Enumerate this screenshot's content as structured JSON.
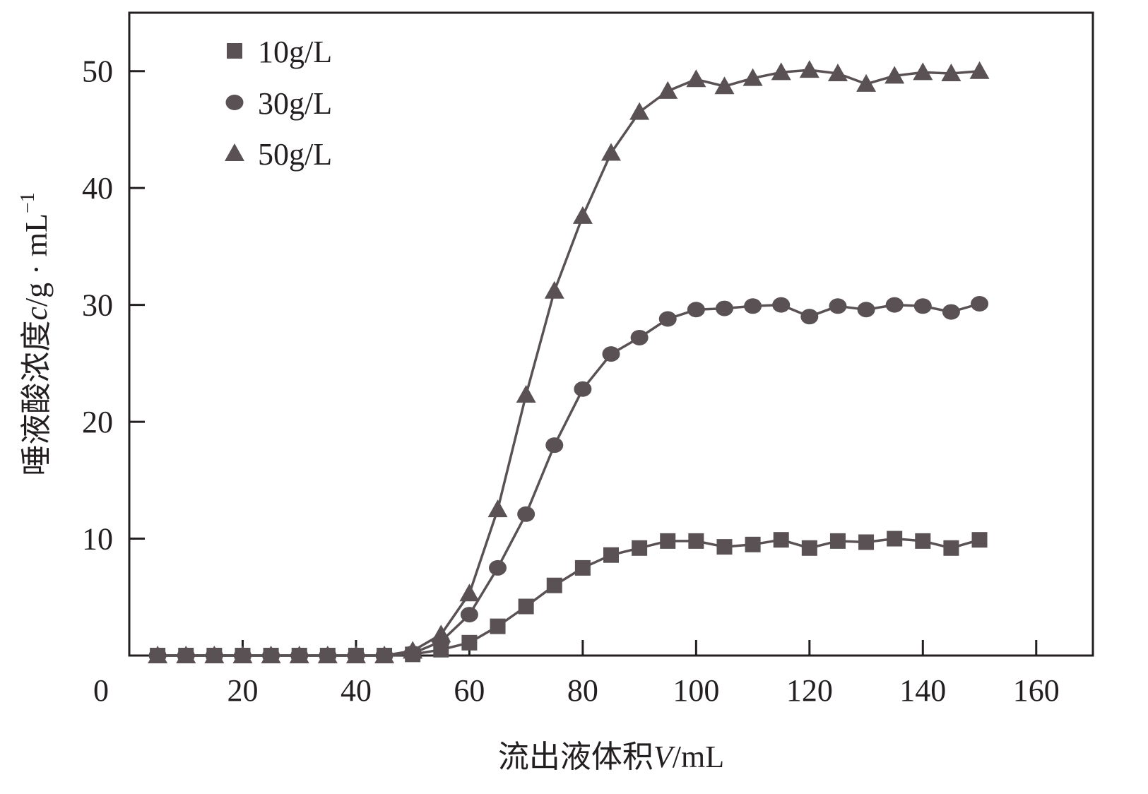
{
  "chart_data": {
    "type": "line",
    "xlabel_parts": [
      {
        "text": "流出液体积",
        "italic": false
      },
      {
        "text": "V",
        "italic": true
      },
      {
        "text": "/mL",
        "italic": false
      }
    ],
    "ylabel_parts": [
      {
        "text": "唾液酸浓度",
        "italic": false
      },
      {
        "text": "c",
        "italic": true
      },
      {
        "text": "/g · mL",
        "italic": false
      }
    ],
    "ylabel_superscript": "−1",
    "xlim": [
      0,
      170
    ],
    "ylim": [
      0,
      55
    ],
    "x_ticks": [
      0,
      20,
      40,
      60,
      80,
      100,
      120,
      140,
      160
    ],
    "y_ticks": [
      10,
      20,
      30,
      40,
      50
    ],
    "grid": false,
    "legend_position": "top-left",
    "line_color": "#595153",
    "x": [
      5,
      10,
      15,
      20,
      25,
      30,
      35,
      40,
      45,
      50,
      55,
      60,
      65,
      70,
      75,
      80,
      85,
      90,
      95,
      100,
      105,
      110,
      115,
      120,
      125,
      130,
      135,
      140,
      145,
      150
    ],
    "series": [
      {
        "name": "10g/L",
        "marker": "square",
        "values": [
          0,
          0,
          0,
          0,
          0,
          0,
          0,
          0,
          0,
          0.1,
          0.5,
          1.1,
          2.5,
          4.2,
          6.0,
          7.5,
          8.6,
          9.2,
          9.8,
          9.8,
          9.3,
          9.5,
          9.9,
          9.2,
          9.8,
          9.7,
          10.0,
          9.8,
          9.2,
          9.9
        ]
      },
      {
        "name": "30g/L",
        "marker": "circle",
        "values": [
          0,
          0,
          0,
          0,
          0,
          0,
          0,
          0,
          0,
          0.2,
          1.2,
          3.5,
          7.5,
          12.1,
          18.0,
          22.8,
          25.8,
          27.2,
          28.8,
          29.6,
          29.7,
          29.9,
          30.0,
          29.0,
          29.9,
          29.6,
          30.0,
          29.9,
          29.4,
          30.1
        ]
      },
      {
        "name": "50g/L",
        "marker": "triangle",
        "values": [
          0,
          0,
          0,
          0,
          0,
          0,
          0,
          0,
          0,
          0.4,
          1.8,
          5.3,
          12.5,
          22.3,
          31.2,
          37.6,
          43.0,
          46.5,
          48.3,
          49.3,
          48.7,
          49.4,
          49.9,
          50.1,
          49.8,
          48.9,
          49.6,
          49.9,
          49.8,
          50.0
        ]
      }
    ]
  }
}
